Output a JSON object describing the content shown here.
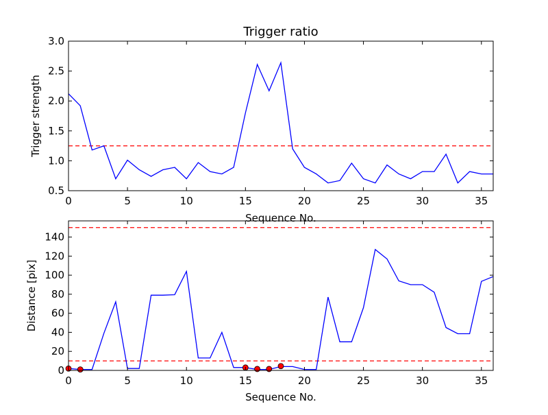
{
  "chart_data": [
    {
      "type": "line",
      "title": "Trigger ratio",
      "xlabel": "Sequence No.",
      "ylabel": "Trigger strength",
      "xlim": [
        0,
        36
      ],
      "ylim": [
        0.5,
        3.0
      ],
      "xticks": [
        "0",
        "5",
        "10",
        "15",
        "20",
        "25",
        "30",
        "35"
      ],
      "yticks": [
        "0.5",
        "1.0",
        "1.5",
        "2.0",
        "2.5",
        "3.0"
      ],
      "grid": false,
      "line_color": "#0000ff",
      "threshold_color": "#ff0000",
      "thresholds": [
        1.25
      ],
      "series": [
        {
          "x": [
            0,
            1,
            2,
            3,
            4,
            5,
            6,
            7,
            8,
            9,
            10,
            11,
            12,
            13,
            14,
            15,
            16,
            17,
            18,
            19,
            20,
            21,
            22,
            23,
            24,
            25,
            26,
            27,
            28,
            29,
            30,
            31,
            32,
            33,
            34,
            35,
            36
          ],
          "values": [
            2.12,
            1.92,
            1.18,
            1.25,
            0.7,
            1.01,
            0.85,
            0.74,
            0.85,
            0.89,
            0.7,
            0.97,
            0.82,
            0.78,
            0.89,
            1.8,
            2.61,
            2.17,
            2.64,
            1.2,
            0.89,
            0.78,
            0.63,
            0.67,
            0.96,
            0.7,
            0.63,
            0.93,
            0.78,
            0.7,
            0.82,
            0.82,
            1.11,
            0.63,
            0.82,
            0.78,
            0.78
          ]
        }
      ]
    },
    {
      "type": "line",
      "title": "",
      "xlabel": "Sequence No.",
      "ylabel": "Distance [pix]",
      "xlim": [
        0,
        36
      ],
      "ylim": [
        0,
        157
      ],
      "xticks": [
        "0",
        "5",
        "10",
        "15",
        "20",
        "25",
        "30",
        "35"
      ],
      "yticks": [
        "0",
        "20",
        "40",
        "60",
        "80",
        "100",
        "120",
        "140"
      ],
      "grid": false,
      "line_color": "#0000ff",
      "threshold_color": "#ff0000",
      "marker_color": "#ff0000",
      "thresholds": [
        10,
        150
      ],
      "series": [
        {
          "x": [
            0,
            1,
            2,
            3,
            4,
            5,
            6,
            7,
            8,
            9,
            10,
            11,
            12,
            13,
            14,
            15,
            16,
            17,
            18,
            19,
            20,
            21,
            22,
            23,
            24,
            25,
            26,
            27,
            28,
            29,
            30,
            31,
            32,
            33,
            34,
            35,
            36
          ],
          "values": [
            2,
            1,
            1,
            39,
            72,
            2,
            2,
            79,
            79,
            79.5,
            104,
            13,
            13,
            40,
            3,
            3,
            1,
            1,
            4,
            4,
            1,
            1,
            77,
            30,
            30,
            66,
            127,
            117,
            94,
            90,
            90,
            82,
            45,
            38.5,
            38.5,
            93.5,
            98.5
          ]
        }
      ],
      "markers": {
        "x": [
          0,
          1,
          15,
          16,
          17,
          18
        ],
        "values": [
          2,
          1,
          3,
          1.5,
          1.5,
          4.5
        ]
      }
    }
  ]
}
